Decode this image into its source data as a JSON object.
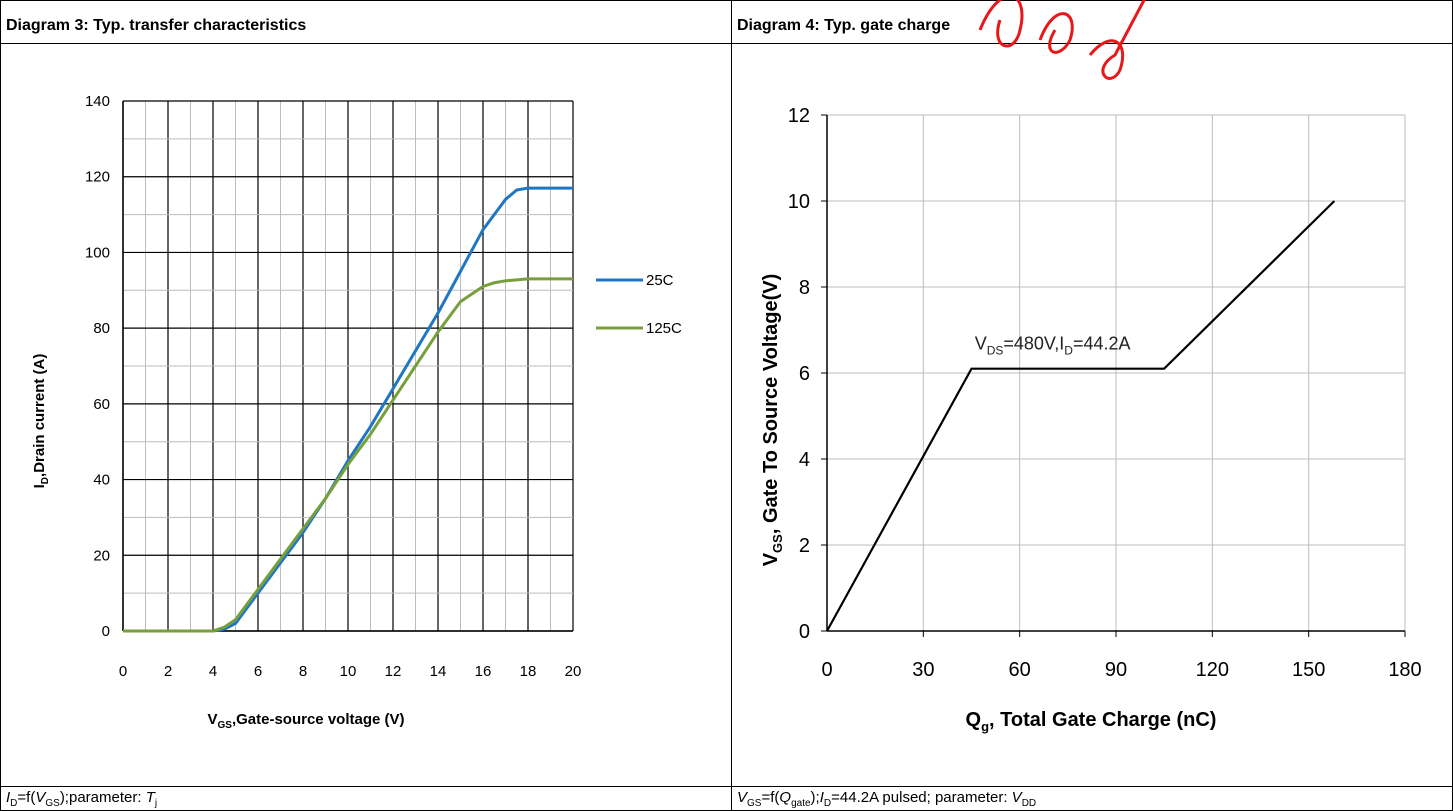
{
  "left_panel": {
    "title": "Diagram 3: Typ. transfer characteristics",
    "caption": {
      "p1": "I",
      "p1sub": "D",
      "p2": "=f(",
      "p3": "V",
      "p3sub": "GS",
      "p4": ");parameter: ",
      "p5": "T",
      "p5sub": "j"
    }
  },
  "right_panel": {
    "title": "Diagram 4: Typ. gate charge",
    "caption": {
      "p1": "V",
      "p1sub": "GS",
      "p2": "=f(",
      "p3": "Q",
      "p3sub": "gate",
      "p4": ");",
      "p5": "I",
      "p5sub": "D",
      "p6": "=44.2A pulsed; parameter: ",
      "p7": "V",
      "p7sub": "DD"
    }
  },
  "chart_data": [
    {
      "type": "line",
      "xlabel_main": "V",
      "xlabel_sub": "GS",
      "xlabel_rest": ",Gate-source voltage (V)",
      "ylabel_main": "I",
      "ylabel_sub": "D",
      "ylabel_rest": ",Drain current (A)",
      "xlim": [
        0,
        20
      ],
      "ylim": [
        0,
        140
      ],
      "xticks": [
        "0",
        "2",
        "4",
        "6",
        "8",
        "10",
        "12",
        "14",
        "16",
        "18",
        "20"
      ],
      "yticks": [
        "0",
        "20",
        "40",
        "60",
        "80",
        "100",
        "120",
        "140"
      ],
      "grid": true,
      "legend": "right",
      "series": [
        {
          "name": "25C",
          "color": "#1f77c4",
          "x": [
            0,
            1,
            2,
            3,
            4,
            4.5,
            5,
            5.5,
            6,
            7,
            8,
            9,
            10,
            11,
            12,
            13,
            14,
            15,
            16,
            17,
            17.5,
            18,
            19,
            20
          ],
          "y": [
            0,
            0,
            0,
            0,
            0,
            0.5,
            2,
            6,
            10,
            18,
            26,
            35,
            45,
            54,
            64,
            74,
            84,
            95,
            106,
            114,
            116.5,
            117,
            117,
            117
          ]
        },
        {
          "name": "125C",
          "color": "#77a03c",
          "x": [
            0,
            1,
            2,
            3,
            4,
            4.5,
            5,
            5.5,
            6,
            7,
            8,
            9,
            10,
            11,
            12,
            13,
            14,
            15,
            16,
            16.5,
            17,
            18,
            19,
            20
          ],
          "y": [
            0,
            0,
            0,
            0,
            0,
            1,
            3,
            7,
            11,
            19,
            27,
            35,
            44,
            52,
            61,
            70,
            79,
            87,
            91,
            92,
            92.5,
            93,
            93,
            93
          ]
        }
      ]
    },
    {
      "type": "line",
      "xlabel_main": "Q",
      "xlabel_sub": "g",
      "xlabel_rest": ", Total Gate Charge (nC)",
      "ylabel_main": "V",
      "ylabel_sub": "GS",
      "ylabel_rest": ",  Gate To  Source Voltage(V)",
      "xlim": [
        0,
        180
      ],
      "ylim": [
        0,
        12
      ],
      "xticks": [
        "0",
        "30",
        "60",
        "90",
        "120",
        "150",
        "180"
      ],
      "yticks": [
        "0",
        "2",
        "4",
        "6",
        "8",
        "10",
        "12"
      ],
      "grid": true,
      "series": [
        {
          "name": "",
          "color": "#000000",
          "x": [
            0,
            45,
            105,
            158
          ],
          "y": [
            0,
            6.1,
            6.1,
            10
          ]
        }
      ],
      "annotation": {
        "a": "V",
        "b": "DS",
        "c": "=480V,I",
        "d": "D",
        "e": "=44.2A",
        "x": 46,
        "y": 6.55
      }
    }
  ]
}
